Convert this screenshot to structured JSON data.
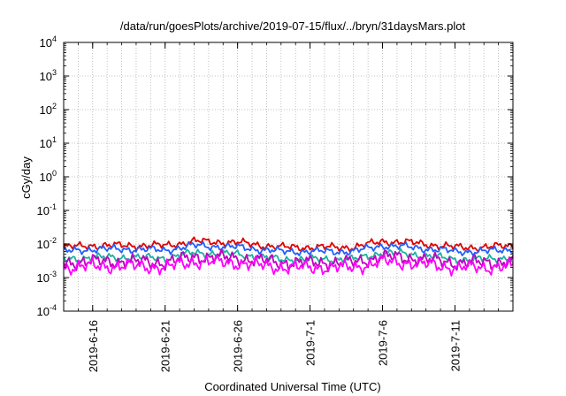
{
  "chart_data": {
    "type": "line",
    "title": "/data/run/goesPlots/archive/2019-07-15/flux/../bryn/31daysMars.plot",
    "xlabel": "Coordinated Universal Time (UTC)",
    "ylabel": "cGy/day",
    "y_scale": "log",
    "ylim": [
      0.0001,
      10000
    ],
    "y_ticks": [
      {
        "base": "10",
        "exp": "-4"
      },
      {
        "base": "10",
        "exp": "-3"
      },
      {
        "base": "10",
        "exp": "-2"
      },
      {
        "base": "10",
        "exp": "-1"
      },
      {
        "base": "10",
        "exp": "0"
      },
      {
        "base": "10",
        "exp": "1"
      },
      {
        "base": "10",
        "exp": "2"
      },
      {
        "base": "10",
        "exp": "3"
      },
      {
        "base": "10",
        "exp": "4"
      }
    ],
    "xlim": [
      "2019-06-14",
      "2019-07-15"
    ],
    "x_ticks": [
      "2019-6-16",
      "2019-6-21",
      "2019-6-26",
      "2019-7-1",
      "2019-7-6",
      "2019-7-11"
    ],
    "grid": true,
    "series": [
      {
        "color": "#e00000",
        "x": [
          "2019-06-14",
          "2019-06-16",
          "2019-06-19",
          "2019-06-21",
          "2019-06-23",
          "2019-06-26",
          "2019-06-29",
          "2019-07-01",
          "2019-07-04",
          "2019-07-06",
          "2019-07-08",
          "2019-07-11",
          "2019-07-13",
          "2019-07-15"
        ],
        "values": [
          0.008,
          0.009,
          0.009,
          0.009,
          0.012,
          0.011,
          0.008,
          0.008,
          0.008,
          0.012,
          0.011,
          0.008,
          0.008,
          0.009
        ]
      },
      {
        "color": "#2060ff",
        "x": [
          "2019-06-14",
          "2019-06-16",
          "2019-06-19",
          "2019-06-21",
          "2019-06-23",
          "2019-06-26",
          "2019-06-29",
          "2019-07-01",
          "2019-07-04",
          "2019-07-06",
          "2019-07-08",
          "2019-07-11",
          "2019-07-13",
          "2019-07-15"
        ],
        "values": [
          0.006,
          0.007,
          0.007,
          0.0065,
          0.009,
          0.008,
          0.006,
          0.006,
          0.006,
          0.009,
          0.008,
          0.006,
          0.006,
          0.007
        ]
      },
      {
        "color": "#20b0a0",
        "x": [
          "2019-06-14",
          "2019-06-16",
          "2019-06-19",
          "2019-06-21",
          "2019-06-23",
          "2019-06-26",
          "2019-06-29",
          "2019-07-01",
          "2019-07-04",
          "2019-07-06",
          "2019-07-08",
          "2019-07-11",
          "2019-07-13",
          "2019-07-15"
        ],
        "values": [
          0.0035,
          0.004,
          0.004,
          0.0038,
          0.0055,
          0.005,
          0.0035,
          0.0035,
          0.0035,
          0.0055,
          0.005,
          0.0035,
          0.0035,
          0.004
        ]
      },
      {
        "color": "#c000c0",
        "x": [
          "2019-06-14",
          "2019-06-16",
          "2019-06-19",
          "2019-06-21",
          "2019-06-23",
          "2019-06-26",
          "2019-06-29",
          "2019-07-01",
          "2019-07-04",
          "2019-07-06",
          "2019-07-08",
          "2019-07-11",
          "2019-07-13",
          "2019-07-15"
        ],
        "values": [
          0.0028,
          0.003,
          0.003,
          0.0028,
          0.0042,
          0.0038,
          0.0028,
          0.0028,
          0.0028,
          0.0042,
          0.0038,
          0.0028,
          0.0028,
          0.003
        ]
      },
      {
        "color": "#ff00ff",
        "x": [
          "2019-06-14",
          "2019-06-16",
          "2019-06-19",
          "2019-06-21",
          "2019-06-23",
          "2019-06-26",
          "2019-06-29",
          "2019-07-01",
          "2019-07-04",
          "2019-07-06",
          "2019-07-08",
          "2019-07-11",
          "2019-07-13",
          "2019-07-15"
        ],
        "values": [
          0.002,
          0.0022,
          0.0022,
          0.002,
          0.003,
          0.0027,
          0.002,
          0.002,
          0.002,
          0.003,
          0.0027,
          0.002,
          0.002,
          0.0022
        ]
      }
    ]
  }
}
